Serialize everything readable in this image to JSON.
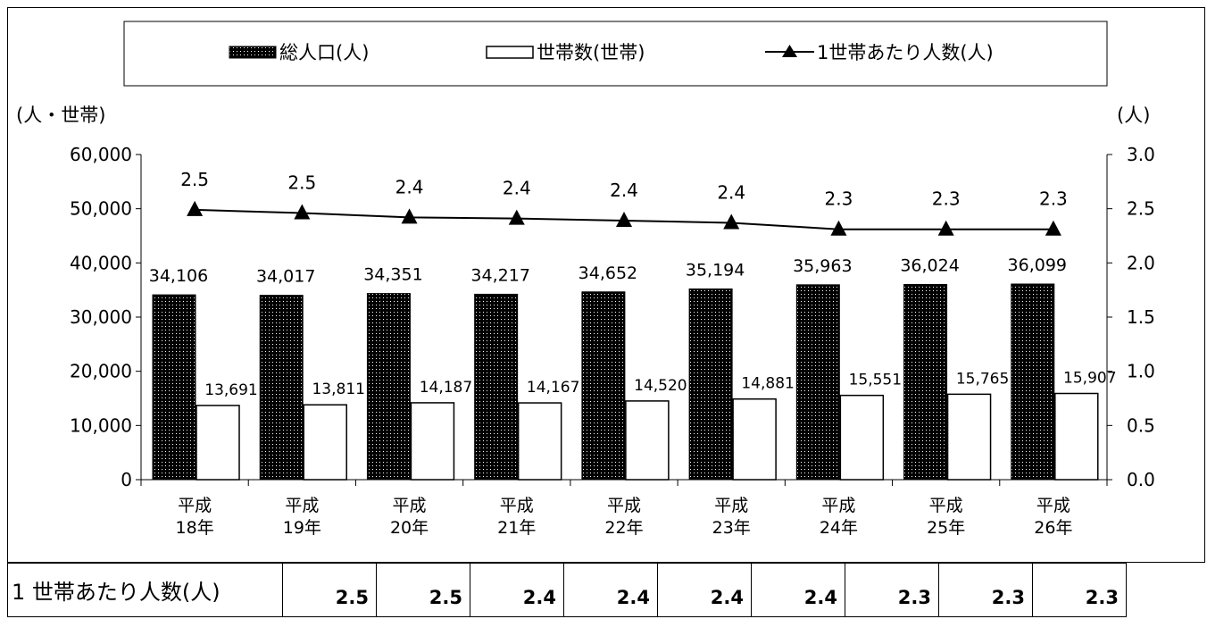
{
  "chart_data": {
    "type": "bar",
    "categories": [
      [
        "平成",
        "18年"
      ],
      [
        "平成",
        "19年"
      ],
      [
        "平成",
        "20年"
      ],
      [
        "平成",
        "21年"
      ],
      [
        "平成",
        "22年"
      ],
      [
        "平成",
        "23年"
      ],
      [
        "平成",
        "24年"
      ],
      [
        "平成",
        "25年"
      ],
      [
        "平成",
        "26年"
      ]
    ],
    "series": [
      {
        "name": "総人口(人)",
        "type": "bar",
        "axis": "left",
        "values": [
          34106,
          34017,
          34351,
          34217,
          34652,
          35194,
          35963,
          36024,
          36099
        ],
        "labels": [
          "34,106",
          "34,017",
          "34,351",
          "34,217",
          "34,652",
          "35,194",
          "35,963",
          "36,024",
          "36,099"
        ]
      },
      {
        "name": "世帯数(世帯)",
        "type": "bar",
        "axis": "left",
        "values": [
          13691,
          13811,
          14187,
          14167,
          14520,
          14881,
          15551,
          15765,
          15907
        ],
        "labels": [
          "13,691",
          "13,811",
          "14,187",
          "14,167",
          "14,520",
          "14,881",
          "15,551",
          "15,765",
          "15,907"
        ]
      },
      {
        "name": "1世帯あたり人数(人)",
        "type": "line",
        "axis": "right",
        "values": [
          2.49,
          2.46,
          2.42,
          2.41,
          2.39,
          2.37,
          2.31,
          2.31,
          2.31
        ],
        "labels": [
          "2.5",
          "2.5",
          "2.4",
          "2.4",
          "2.4",
          "2.4",
          "2.3",
          "2.3",
          "2.3"
        ]
      }
    ],
    "left_axis": {
      "unit": "(人・世帯)",
      "ylim": [
        0,
        60000
      ],
      "ticks": [
        "0",
        "10,000",
        "20,000",
        "30,000",
        "40,000",
        "50,000",
        "60,000"
      ]
    },
    "right_axis": {
      "unit": "(人)",
      "ylim": [
        0,
        3.0
      ],
      "ticks": [
        "0.0",
        "0.5",
        "1.0",
        "1.5",
        "2.0",
        "2.5",
        "3.0"
      ]
    },
    "legend_position": "top",
    "grid": false
  },
  "table": {
    "label": "1 世帯あたり人数(人)",
    "values": [
      "2.5",
      "2.5",
      "2.4",
      "2.4",
      "2.4",
      "2.4",
      "2.3",
      "2.3",
      "2.3"
    ]
  },
  "colors": {
    "population_fill": "#000000",
    "household_fill": "#ffffff",
    "line": "#000000"
  }
}
